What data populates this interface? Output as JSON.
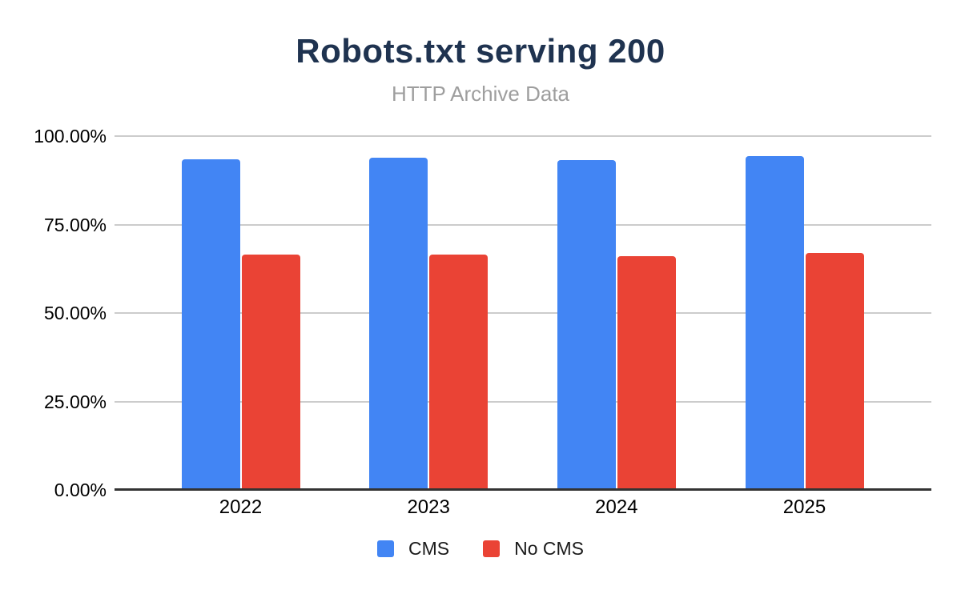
{
  "chart_data": {
    "type": "bar",
    "title": "Robots.txt serving 200",
    "subtitle": "HTTP Archive Data",
    "categories": [
      "2022",
      "2023",
      "2024",
      "2025"
    ],
    "series": [
      {
        "name": "CMS",
        "color": "#4285F4",
        "values": [
          93.4,
          93.9,
          93.2,
          94.3
        ]
      },
      {
        "name": "No CMS",
        "color": "#EA4335",
        "values": [
          66.5,
          66.5,
          66.0,
          66.9
        ]
      }
    ],
    "xlabel": "",
    "ylabel": "",
    "ylim": [
      0,
      100
    ],
    "ytick_values": [
      100,
      75,
      50,
      25,
      0
    ],
    "ytick_labels": [
      "100.00%",
      "75.00%",
      "50.00%",
      "25.00%",
      "0.00%"
    ],
    "grid": true,
    "legend_position": "bottom"
  },
  "colors": {
    "title": "#1F3350",
    "subtitle": "#9E9E9E",
    "gridline": "#CCCCCC",
    "axis_line": "#333333",
    "axis_text": "#000000"
  }
}
